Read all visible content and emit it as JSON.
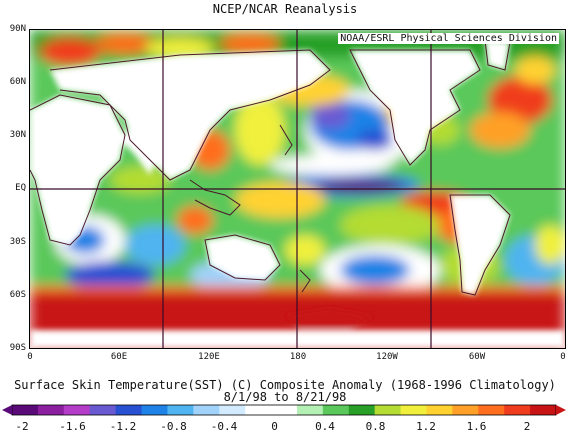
{
  "title": "NCEP/NCAR Reanalysis",
  "credit": "NOAA/ESRL Physical Sciences Division",
  "caption": {
    "line1": "Surface Skin Temperature(SST) (C) Composite Anomaly (1968-1996 Climatology)",
    "line2": "8/1/98  to 8/21/98"
  },
  "lat_labels": [
    "90N",
    "60N",
    "30N",
    "EQ",
    "30S",
    "60S",
    "90S"
  ],
  "lon_labels": [
    "0",
    "60E",
    "120E",
    "180",
    "120W",
    "60W",
    "0"
  ],
  "colorbar": {
    "tick_labels": [
      "-2",
      "-1.6",
      "-1.2",
      "-0.8",
      "-0.4",
      "0",
      "0.4",
      "0.8",
      "1.2",
      "1.6",
      "2"
    ],
    "colors": [
      "#5a0a78",
      "#8c1ea0",
      "#b43cc8",
      "#6a5ad2",
      "#2850d2",
      "#1e82e6",
      "#50b4f0",
      "#a0d2fa",
      "#d2ebff",
      "#ffffff",
      "#ffffff",
      "#b4f0b4",
      "#5ac85a",
      "#28a028",
      "#b4dc32",
      "#f0f03c",
      "#ffd232",
      "#ffa028",
      "#ff6e1e",
      "#f03c1e",
      "#c81414"
    ]
  },
  "colors": {
    "land": "#ffffff",
    "coastline": "#4a1a2a",
    "grid_line": "#3a0a2a",
    "ice_edge": "#d21e14"
  }
}
